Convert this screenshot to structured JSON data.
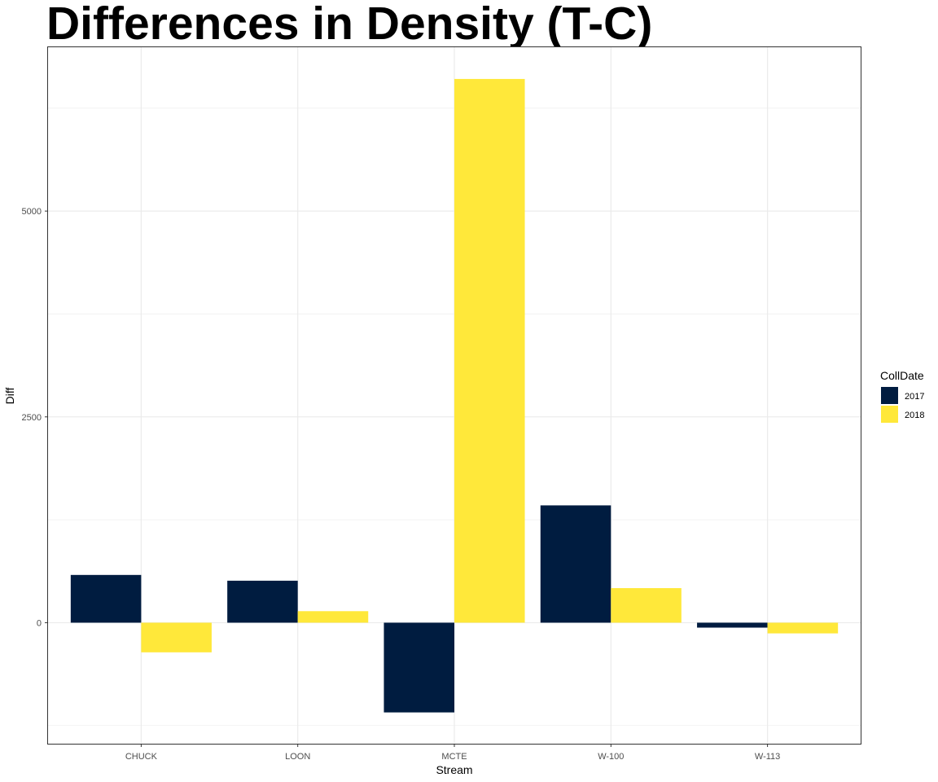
{
  "chart_data": {
    "type": "bar",
    "title": "Differences in Density (T-C)",
    "xlabel": "Stream",
    "ylabel": "Diff",
    "categories": [
      "CHUCK",
      "LOON",
      "MCTE",
      "W-100",
      "W-113"
    ],
    "series": [
      {
        "name": "2017",
        "color": "#001C40",
        "values": [
          580,
          510,
          -1090,
          1425,
          -60
        ]
      },
      {
        "name": "2018",
        "color": "#FFE83A",
        "values": [
          -360,
          140,
          6605,
          420,
          -130
        ]
      }
    ],
    "ylim": [
      -1480,
      7000
    ],
    "yticks": [
      0,
      2500,
      5000
    ],
    "ytick_labels": [
      "0",
      "2500",
      "5000"
    ],
    "grid": true,
    "legend": {
      "title": "CollDate",
      "position": "right",
      "labels": [
        "2017",
        "2018"
      ]
    }
  }
}
